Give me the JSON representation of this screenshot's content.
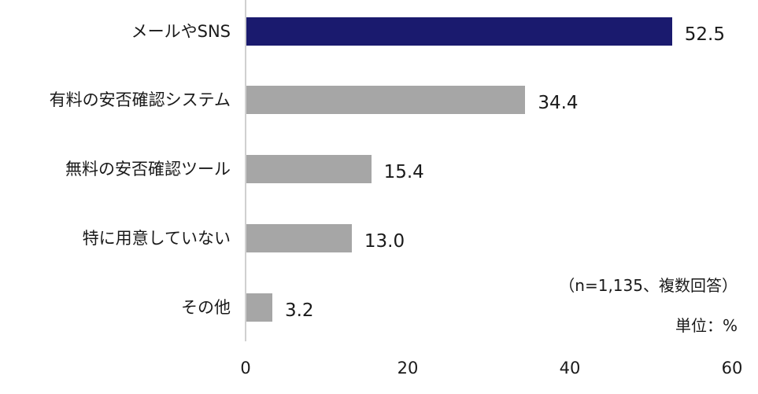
{
  "chart_data": {
    "type": "bar",
    "orientation": "horizontal",
    "title": "",
    "categories": [
      "メールやSNS",
      "有料の安否確認システム",
      "無料の安否確認ツール",
      "特に用意していない",
      "その他"
    ],
    "values": [
      52.5,
      34.4,
      15.4,
      13.0,
      3.2
    ],
    "value_labels": [
      "52.5",
      "34.4",
      "15.4",
      "13.0",
      "3.2"
    ],
    "bar_colors": [
      "#1a1a6e",
      "#a6a6a6",
      "#a6a6a6",
      "#a6a6a6",
      "#a6a6a6"
    ],
    "xlabel": "",
    "ylabel": "",
    "xlim": [
      0,
      60
    ],
    "x_ticks": [
      "0",
      "20",
      "40",
      "60"
    ],
    "grid": false,
    "legend": null,
    "annotations": [
      "（n=1,135、複数回答）",
      "単位：%"
    ]
  },
  "notes": {
    "sample": "（n=1,135、複数回答）",
    "unit": "単位：%"
  }
}
